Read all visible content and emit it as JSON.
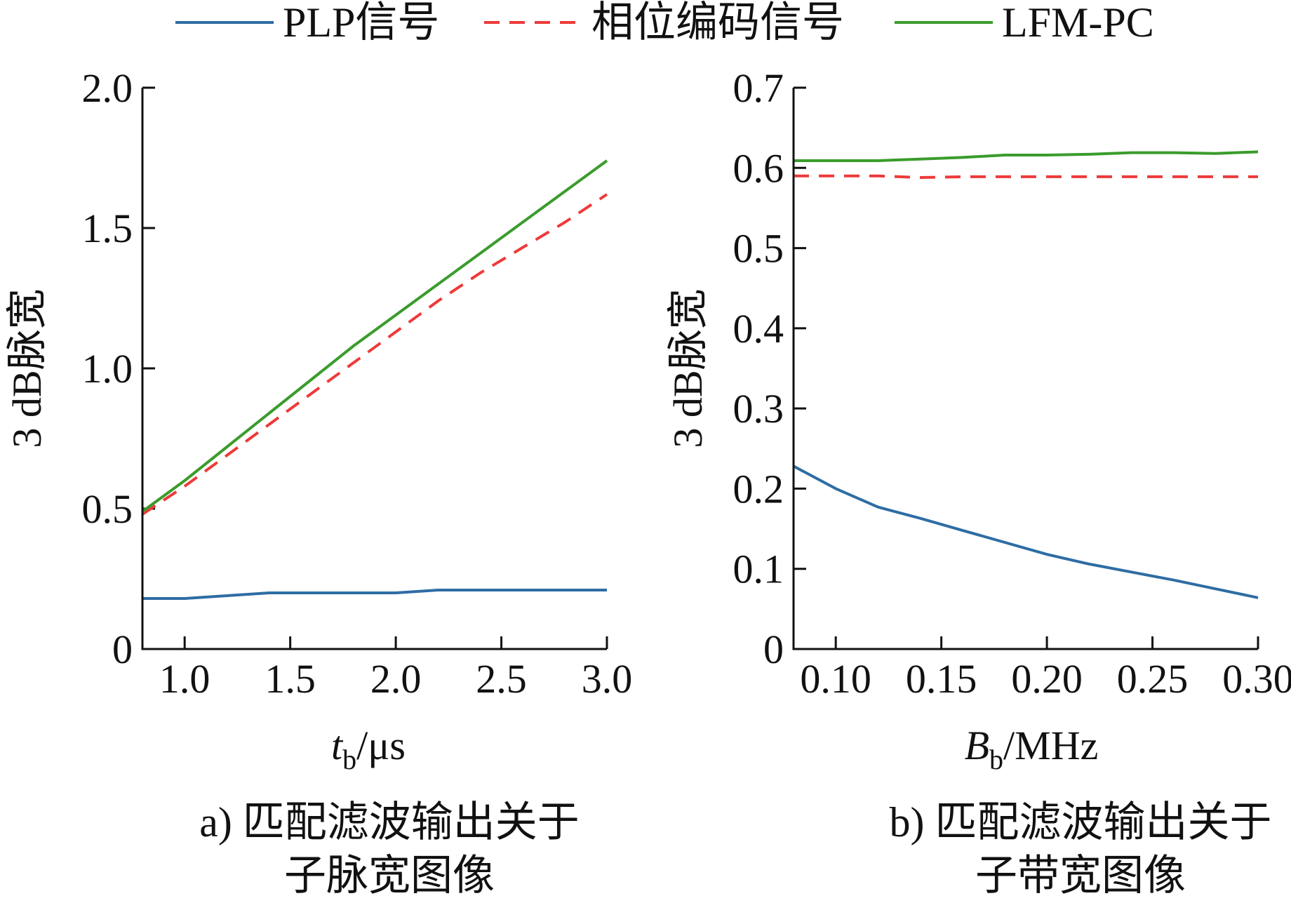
{
  "legend": {
    "items": [
      {
        "label": "PLP信号",
        "color": "#2e6da4",
        "dash": "solid"
      },
      {
        "label": "相位编码信号",
        "color": "#ee3a3a",
        "dash": "dashed"
      },
      {
        "label": "LFM-PC",
        "color": "#3a9c2c",
        "dash": "solid"
      }
    ]
  },
  "chart_data": [
    {
      "type": "line",
      "caption_line1": "a) 匹配滤波输出关于",
      "caption_line2": "子脉宽图像",
      "ylabel": "3 dB脉宽",
      "xlabel_var": "t",
      "xlabel_sub": "b",
      "xlabel_unit": "/μs",
      "xlim": [
        0.8,
        3.0
      ],
      "ylim": [
        0,
        2.0
      ],
      "xticks": [
        1.0,
        1.5,
        2.0,
        2.5,
        3.0
      ],
      "xtick_labels": [
        "1.0",
        "1.5",
        "2.0",
        "2.5",
        "3.0"
      ],
      "yticks": [
        0,
        0.5,
        1.0,
        1.5,
        2.0
      ],
      "ytick_labels": [
        "0",
        "0.5",
        "1.0",
        "1.5",
        "2.0"
      ],
      "series": [
        {
          "name": "PLP信号",
          "color": "#2e6da4",
          "dash": "solid",
          "x": [
            0.8,
            1.0,
            1.2,
            1.4,
            1.6,
            1.8,
            2.0,
            2.2,
            2.4,
            2.6,
            2.8,
            3.0
          ],
          "y": [
            0.18,
            0.18,
            0.19,
            0.2,
            0.2,
            0.2,
            0.2,
            0.21,
            0.21,
            0.21,
            0.21,
            0.21
          ]
        },
        {
          "name": "相位编码信号",
          "color": "#ee3a3a",
          "dash": "dashed",
          "x": [
            0.8,
            1.0,
            1.2,
            1.4,
            1.6,
            1.8,
            2.0,
            2.2,
            2.4,
            2.6,
            2.8,
            3.0
          ],
          "y": [
            0.48,
            0.58,
            0.69,
            0.8,
            0.91,
            1.02,
            1.13,
            1.24,
            1.34,
            1.43,
            1.52,
            1.62
          ]
        },
        {
          "name": "LFM-PC",
          "color": "#3a9c2c",
          "dash": "solid",
          "x": [
            0.8,
            1.0,
            1.2,
            1.4,
            1.6,
            1.8,
            2.0,
            2.2,
            2.4,
            2.6,
            2.8,
            3.0
          ],
          "y": [
            0.49,
            0.6,
            0.72,
            0.84,
            0.96,
            1.08,
            1.19,
            1.3,
            1.41,
            1.52,
            1.63,
            1.74
          ]
        }
      ]
    },
    {
      "type": "line",
      "caption_line1": "b) 匹配滤波输出关于",
      "caption_line2": "子带宽图像",
      "ylabel": "3 dB脉宽",
      "xlabel_var": "B",
      "xlabel_sub": "b",
      "xlabel_unit": "/MHz",
      "xlim": [
        0.08,
        0.3
      ],
      "ylim": [
        0,
        0.7
      ],
      "xticks": [
        0.1,
        0.15,
        0.2,
        0.25,
        0.3
      ],
      "xtick_labels": [
        "0.10",
        "0.15",
        "0.20",
        "0.25",
        "0.30"
      ],
      "yticks": [
        0,
        0.1,
        0.2,
        0.3,
        0.4,
        0.5,
        0.6,
        0.7
      ],
      "ytick_labels": [
        "0",
        "0.1",
        "0.2",
        "0.3",
        "0.4",
        "0.5",
        "0.6",
        "0.7"
      ],
      "series": [
        {
          "name": "PLP信号",
          "color": "#2e6da4",
          "dash": "solid",
          "x": [
            0.08,
            0.1,
            0.12,
            0.14,
            0.16,
            0.18,
            0.2,
            0.22,
            0.24,
            0.26,
            0.28,
            0.3
          ],
          "y": [
            0.228,
            0.2,
            0.177,
            0.163,
            0.148,
            0.133,
            0.118,
            0.106,
            0.096,
            0.086,
            0.075,
            0.064
          ]
        },
        {
          "name": "相位编码信号",
          "color": "#ee3a3a",
          "dash": "dashed",
          "x": [
            0.08,
            0.1,
            0.12,
            0.14,
            0.16,
            0.18,
            0.2,
            0.22,
            0.24,
            0.26,
            0.28,
            0.3
          ],
          "y": [
            0.59,
            0.59,
            0.59,
            0.588,
            0.589,
            0.589,
            0.589,
            0.589,
            0.589,
            0.589,
            0.589,
            0.589
          ]
        },
        {
          "name": "LFM-PC",
          "color": "#3a9c2c",
          "dash": "solid",
          "x": [
            0.08,
            0.1,
            0.12,
            0.14,
            0.16,
            0.18,
            0.2,
            0.22,
            0.24,
            0.26,
            0.28,
            0.3
          ],
          "y": [
            0.609,
            0.609,
            0.609,
            0.611,
            0.613,
            0.616,
            0.616,
            0.617,
            0.619,
            0.619,
            0.618,
            0.62
          ]
        }
      ]
    }
  ]
}
